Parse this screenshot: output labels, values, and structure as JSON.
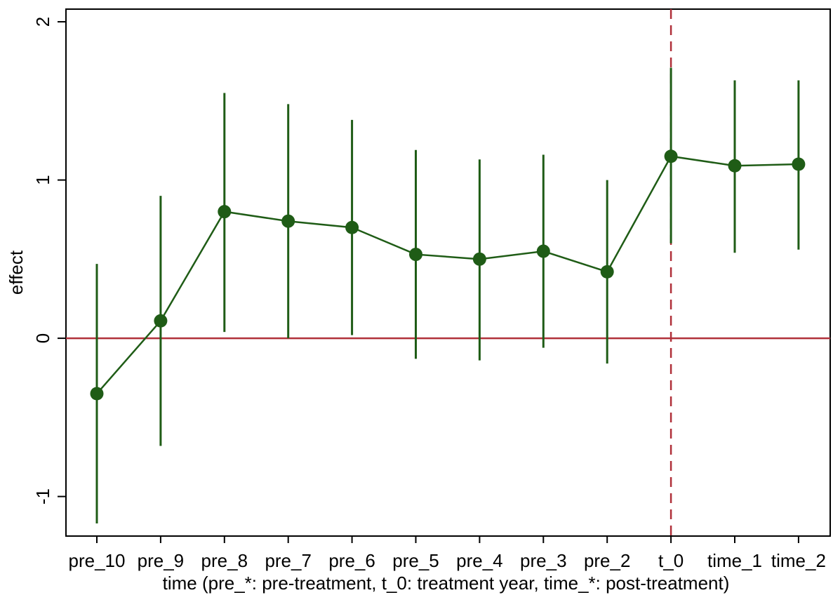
{
  "chart_data": {
    "type": "scatter",
    "title": "",
    "xlabel": "time (pre_*: pre-treatment, t_0: treatment year, time_*: post-treatment)",
    "ylabel": "effect",
    "categories": [
      "pre_10",
      "pre_9",
      "pre_8",
      "pre_7",
      "pre_6",
      "pre_5",
      "pre_4",
      "pre_3",
      "pre_2",
      "t_0",
      "time_1",
      "time_2"
    ],
    "y_ticks": [
      "-1",
      "0",
      "1",
      "2"
    ],
    "ylim": [
      -1.25,
      2.08
    ],
    "series": [
      {
        "name": "",
        "values": [
          -0.35,
          0.11,
          0.8,
          0.74,
          0.7,
          0.53,
          0.5,
          0.55,
          0.42,
          1.15,
          1.09,
          1.1
        ],
        "ci_lower": [
          -1.17,
          -0.68,
          0.04,
          0.0,
          0.02,
          -0.13,
          -0.14,
          -0.06,
          -0.16,
          0.6,
          0.54,
          0.56
        ],
        "ci_upper": [
          0.47,
          0.9,
          1.55,
          1.48,
          1.38,
          1.19,
          1.13,
          1.16,
          1.0,
          1.71,
          1.63,
          1.63
        ]
      }
    ],
    "reference_lines": {
      "horizontal_y": 0,
      "vertical_category": "t_0",
      "vertical_style": "dashed"
    },
    "colors": {
      "series": "#1f5c16",
      "reference": "#b0303a",
      "axis": "#000000"
    },
    "grid": false,
    "legend": "none"
  }
}
